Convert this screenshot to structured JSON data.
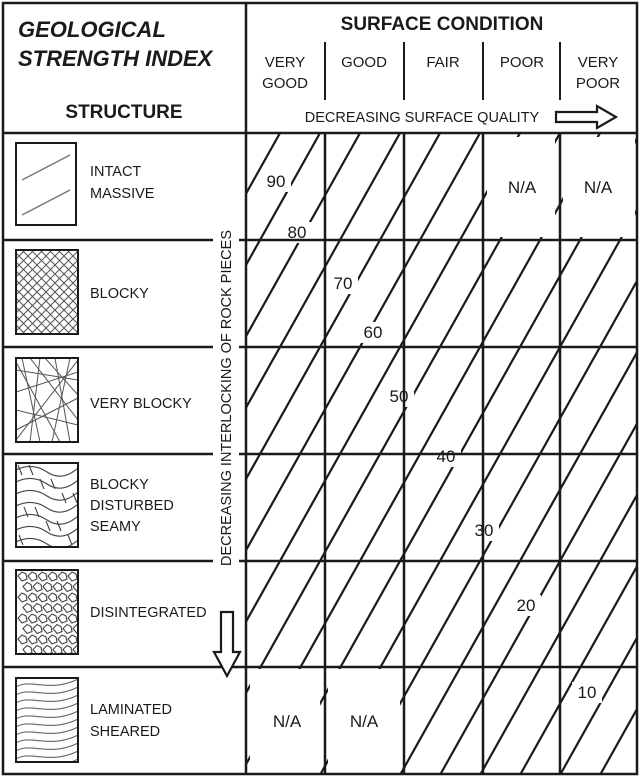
{
  "header": {
    "title_line1": "GEOLOGICAL",
    "title_line2": "STRENGTH INDEX",
    "structure_label": "STRUCTURE",
    "surface_condition_label": "SURFACE CONDITION",
    "decreasing_surface_label": "DECREASING SURFACE QUALITY",
    "decreasing_interlock_label": "DECREASING INTERLOCKING OF ROCK PIECES"
  },
  "surface_conditions": [
    {
      "line1": "VERY",
      "line2": "GOOD"
    },
    {
      "line1": "GOOD",
      "line2": ""
    },
    {
      "line1": "FAIR",
      "line2": ""
    },
    {
      "line1": "POOR",
      "line2": ""
    },
    {
      "line1": "VERY",
      "line2": "POOR"
    }
  ],
  "structures": [
    {
      "line1": "INTACT",
      "line2": "MASSIVE",
      "line3": "",
      "icon": "intact-massive-icon"
    },
    {
      "line1": "BLOCKY",
      "line2": "",
      "line3": "",
      "icon": "blocky-icon"
    },
    {
      "line1": "VERY BLOCKY",
      "line2": "",
      "line3": "",
      "icon": "very-blocky-icon"
    },
    {
      "line1": "BLOCKY",
      "line2": "DISTURBED",
      "line3": "SEAMY",
      "icon": "blocky-disturbed-seamy-icon"
    },
    {
      "line1": "DISINTEGRATED",
      "line2": "",
      "line3": "",
      "icon": "disintegrated-icon"
    },
    {
      "line1": "LAMINATED",
      "line2": "SHEARED",
      "line3": "",
      "icon": "laminated-sheared-icon"
    }
  ],
  "contour_labels": [
    "90",
    "80",
    "70",
    "60",
    "50",
    "40",
    "30",
    "20",
    "10"
  ],
  "na_cells": [
    {
      "text": "N/A",
      "row": 0,
      "col": 3
    },
    {
      "text": "N/A",
      "row": 0,
      "col": 4
    },
    {
      "text": "N/A",
      "row": 5,
      "col": 0
    },
    {
      "text": "N/A",
      "row": 5,
      "col": 1
    }
  ],
  "colors": {
    "ink": "#1a1a1a",
    "icon_stroke": "#555555",
    "background": "#ffffff"
  }
}
